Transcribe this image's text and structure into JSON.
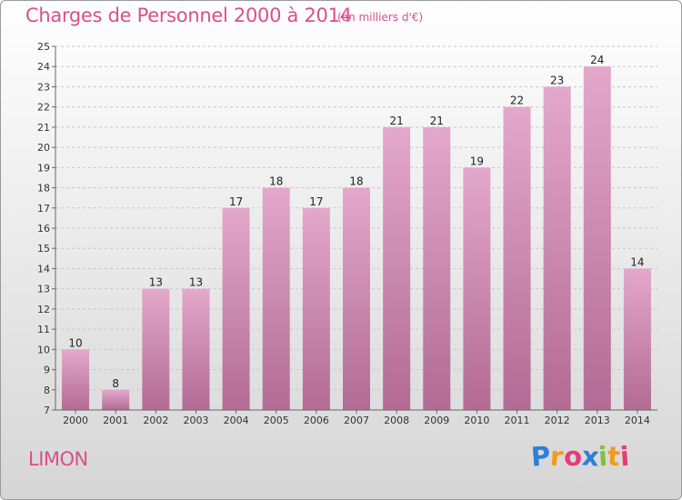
{
  "header": {
    "title": "Charges de Personnel 2000 à 2014",
    "subtitle": "(en milliers d'€)"
  },
  "footer": {
    "commune": "LIMON",
    "logo": "Proxiti",
    "logo_letters": [
      "P",
      "r",
      "o",
      "x",
      "i",
      "t",
      "i"
    ],
    "logo_colors": [
      "#2e7fd6",
      "#f39a1c",
      "#e63a7a",
      "#2e7fd6",
      "#7cc242",
      "#f39a1c",
      "#e63a7a"
    ]
  },
  "chart_data": {
    "type": "bar",
    "categories": [
      "2000",
      "2001",
      "2002",
      "2003",
      "2004",
      "2005",
      "2006",
      "2007",
      "2008",
      "2009",
      "2010",
      "2011",
      "2012",
      "2013",
      "2014"
    ],
    "values": [
      10,
      8,
      13,
      13,
      17,
      18,
      17,
      18,
      21,
      21,
      19,
      22,
      23,
      24,
      14
    ],
    "ylim": [
      7,
      25
    ],
    "yticks": [
      7,
      8,
      9,
      10,
      11,
      12,
      13,
      14,
      15,
      16,
      17,
      18,
      19,
      20,
      21,
      22,
      23,
      24,
      25
    ],
    "grid": true,
    "bar_color_top": "#e3a8cb",
    "bar_color_bottom": "#b26b94"
  }
}
